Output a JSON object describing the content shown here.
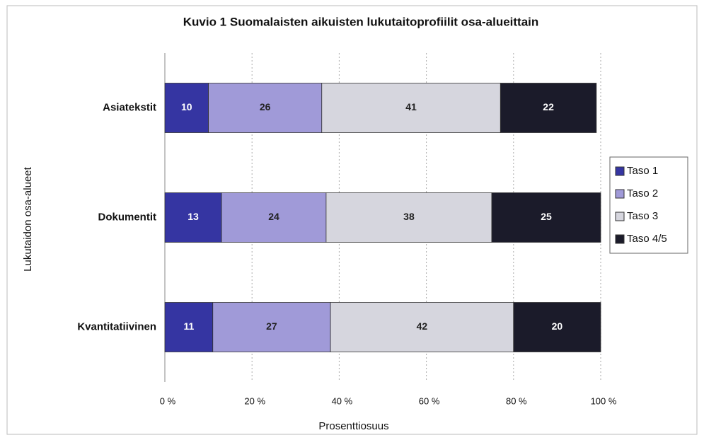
{
  "chart_data": {
    "type": "stacked_barh",
    "title": "Kuvio 1  Suomalaisten aikuisten lukutaitoprofiilit osa-alueittain",
    "x_label": "Prosenttiosuus",
    "y_label": "Lukutaidon osa-alueet",
    "categories": [
      "Asiatekstit",
      "Dokumentit",
      "Kvantitatiivinen"
    ],
    "series": [
      {
        "name": "Taso 1",
        "color": "#3535a2",
        "values": [
          10,
          13,
          11
        ]
      },
      {
        "name": "Taso 2",
        "color": "#a09ad8",
        "values": [
          26,
          24,
          27
        ]
      },
      {
        "name": "Taso 3",
        "color": "#d6d6de",
        "values": [
          41,
          38,
          42
        ]
      },
      {
        "name": "Taso 4/5",
        "color": "#1b1b2a",
        "values": [
          22,
          25,
          20
        ]
      }
    ],
    "xlim": [
      0,
      100
    ],
    "xticks": [
      {
        "value": 0,
        "label": "0 %"
      },
      {
        "value": 20,
        "label": "20 %"
      },
      {
        "value": 40,
        "label": "40 %"
      },
      {
        "value": 60,
        "label": "60 %"
      },
      {
        "value": 80,
        "label": "80 %"
      },
      {
        "value": 100,
        "label": "100 %"
      }
    ],
    "grid": true,
    "legend": "right"
  }
}
